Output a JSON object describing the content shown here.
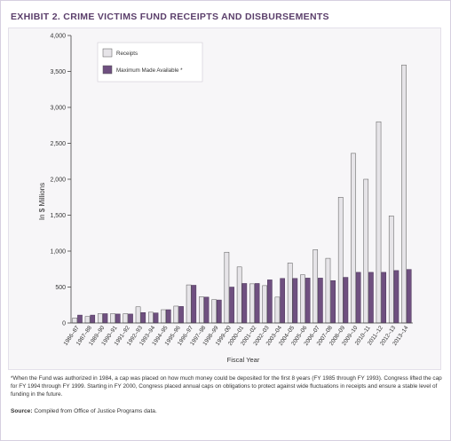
{
  "exhibit": {
    "title": "EXHIBIT 2. CRIME VICTIMS FUND RECEIPTS AND DISBURSEMENTS",
    "footnote": "*When the Fund was authorized in 1984, a cap was placed on how much money could be deposited for the first 8 years (FY 1985 through FY 1993). Congress lifted the cap for FY 1994 through FY 1999. Starting in FY 2000, Congress placed annual caps on obligations to protect against wide fluctuations in receipts and ensure a stable level of funding in the future.",
    "source_label": "Source:",
    "source_text": "Compiled from Office of Justice Programs data."
  },
  "chart_data": {
    "type": "bar",
    "xlabel": "Fiscal Year",
    "ylabel": "In $ Millions",
    "ylim": [
      0,
      4000
    ],
    "yticks": [
      "0",
      "500",
      "1,000",
      "1,500",
      "2,000",
      "2,500",
      "3,000",
      "3,500",
      "4,000"
    ],
    "ytick_values": [
      0,
      500,
      1000,
      1500,
      2000,
      2500,
      3000,
      3500,
      4000
    ],
    "grid": false,
    "legend_position": "top-left",
    "categories": [
      "1986–87",
      "1987–88",
      "1989–90",
      "1990–91",
      "1991–92",
      "1992–93",
      "1993–94",
      "1994–95",
      "1995–96",
      "1996–97",
      "1997–98",
      "1998–99",
      "1999–00",
      "2000–01",
      "2001–02",
      "2002–03",
      "2003–04",
      "2004–05",
      "2005–06",
      "2006–07",
      "2007–08",
      "2008–09",
      "2009–10",
      "2010–11",
      "2011–12",
      "2012–13",
      "2013–14"
    ],
    "series": [
      {
        "name": "Receipts",
        "color": "#e6e4e8",
        "values": [
          70,
          90,
          130,
          130,
          130,
          225,
          150,
          185,
          235,
          530,
          365,
          325,
          985,
          780,
          545,
          520,
          360,
          835,
          670,
          1020,
          900,
          1750,
          2360,
          2000,
          2800,
          1490,
          3590
        ]
      },
      {
        "name": "Maximum Made Available *",
        "color": "#6f5080",
        "values": [
          110,
          110,
          130,
          125,
          125,
          145,
          140,
          185,
          230,
          525,
          360,
          320,
          500,
          550,
          550,
          600,
          620,
          620,
          625,
          625,
          590,
          635,
          705,
          705,
          705,
          730,
          745
        ]
      }
    ]
  }
}
